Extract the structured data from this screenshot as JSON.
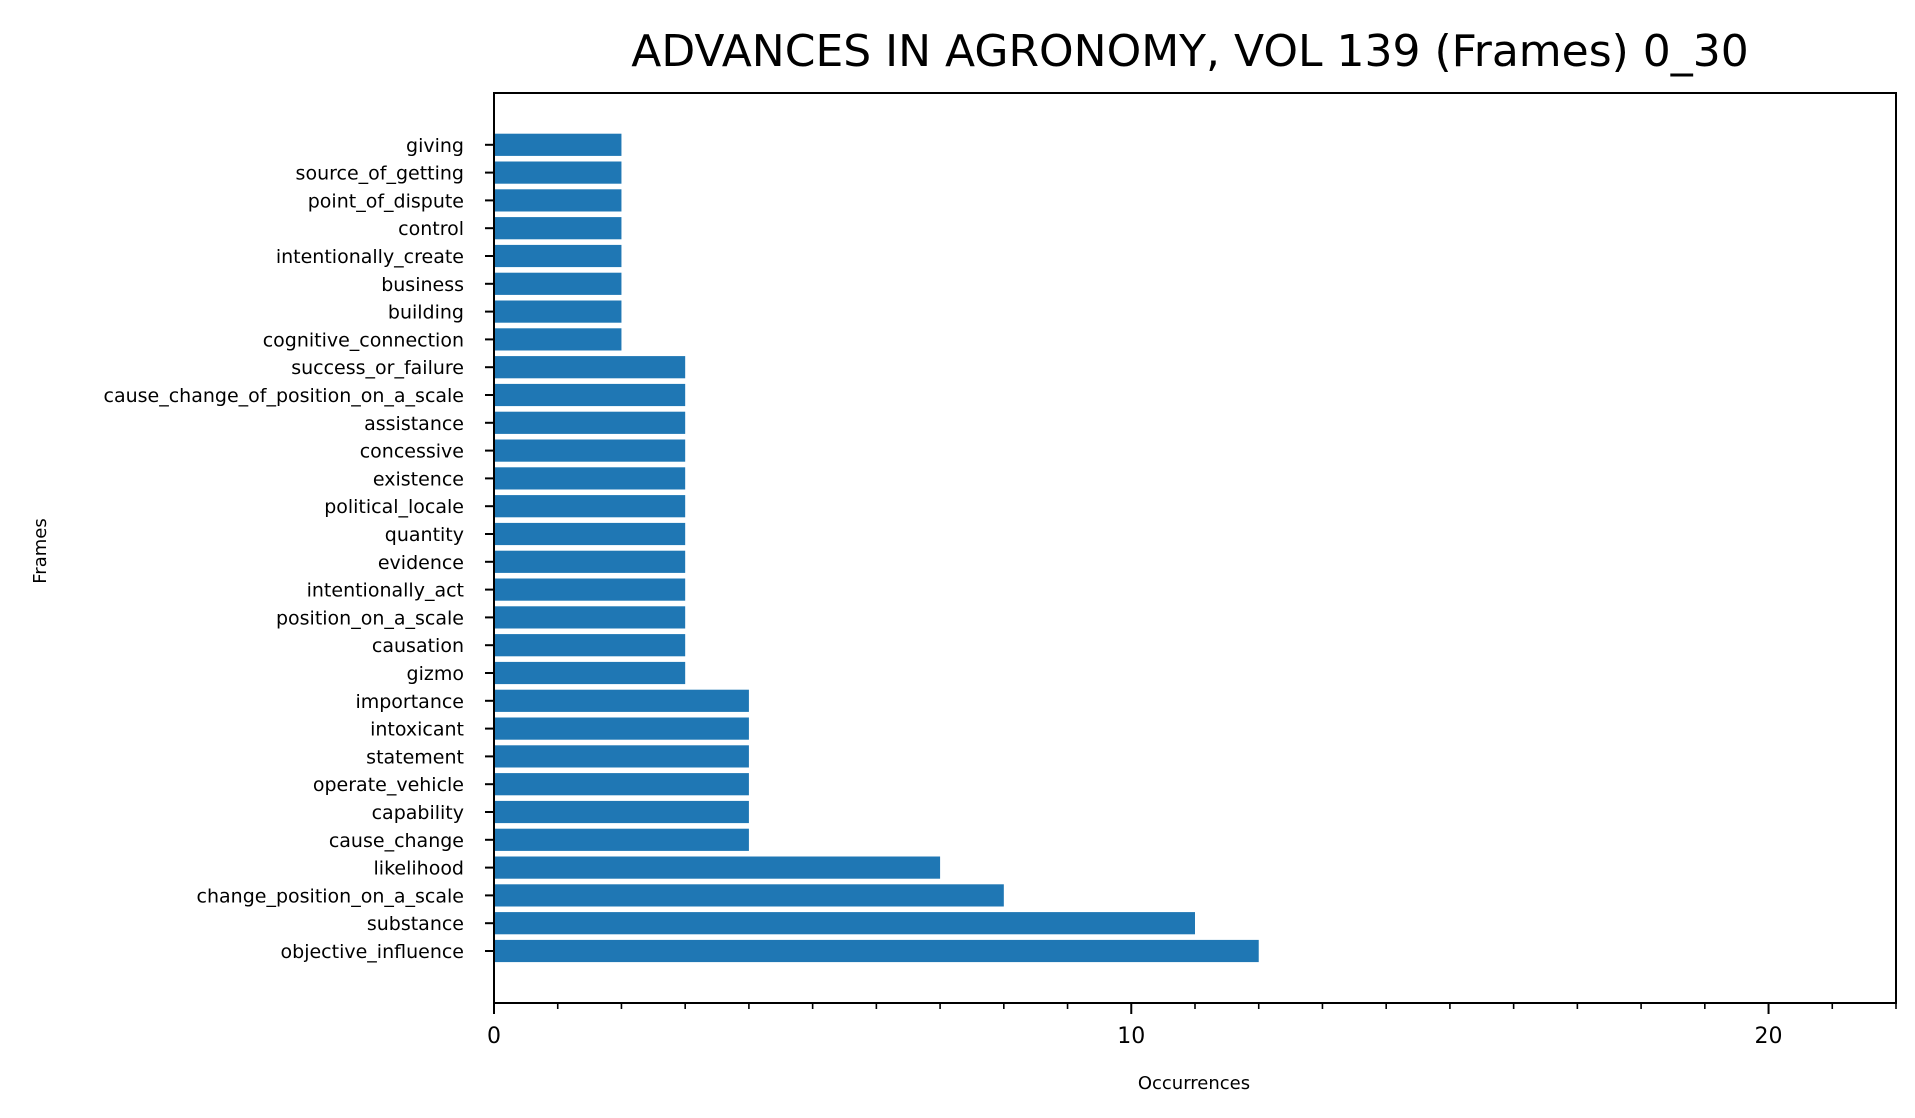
{
  "chart_data": {
    "type": "bar",
    "orientation": "horizontal",
    "title": "ADVANCES IN AGRONOMY, VOL 139 (Frames) 0_30",
    "xlabel": "Occurrences",
    "ylabel": "Frames",
    "xlim": [
      0,
      22
    ],
    "xticks": [
      0,
      10,
      20
    ],
    "xminor_step": 1,
    "grid": false,
    "bar_color": "#1f77b4",
    "categories": [
      "objective_influence",
      "substance",
      "change_position_on_a_scale",
      "likelihood",
      "cause_change",
      "capability",
      "operate_vehicle",
      "statement",
      "intoxicant",
      "importance",
      "gizmo",
      "causation",
      "position_on_a_scale",
      "intentionally_act",
      "evidence",
      "quantity",
      "political_locale",
      "existence",
      "concessive",
      "assistance",
      "cause_change_of_position_on_a_scale",
      "success_or_failure",
      "cognitive_connection",
      "building",
      "business",
      "intentionally_create",
      "control",
      "point_of_dispute",
      "source_of_getting",
      "giving"
    ],
    "values": [
      12,
      11,
      8,
      7,
      4,
      4,
      4,
      4,
      4,
      4,
      3,
      3,
      3,
      3,
      3,
      3,
      3,
      3,
      3,
      3,
      3,
      3,
      2,
      2,
      2,
      2,
      2,
      2,
      2,
      2
    ]
  }
}
